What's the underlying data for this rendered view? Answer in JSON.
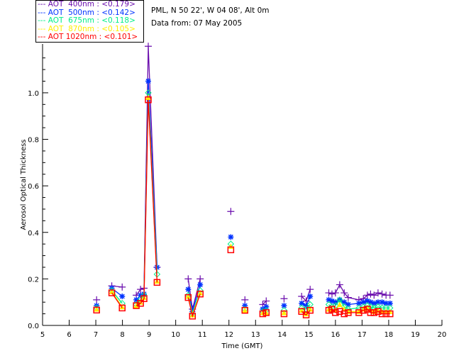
{
  "chart_data": {
    "type": "scatter",
    "title": "",
    "header": [
      "PML, N 50 22', W 04 08', Alt 0m",
      "Data from: 07 May 2005"
    ],
    "xlabel": "Time (GMT)",
    "ylabel": "Aerosol Optical Thickness",
    "xlim": [
      5,
      20
    ],
    "ylim": [
      0,
      1.21
    ],
    "xticks": [
      "5",
      "6",
      "7",
      "8",
      "9",
      "10",
      "11",
      "12",
      "13",
      "14",
      "15",
      "16",
      "17",
      "18",
      "19",
      "20"
    ],
    "yticks": [
      "0.0",
      "0.2",
      "0.4",
      "0.6",
      "0.8",
      "1.0"
    ],
    "legend_placement": "top-left outside",
    "x": [
      7.03,
      7.6,
      7.99,
      8.52,
      8.68,
      8.81,
      8.97,
      9.3,
      10.47,
      10.63,
      10.92,
      12.07,
      12.6,
      13.27,
      13.4,
      14.07,
      14.73,
      14.9,
      15.05,
      15.75,
      15.87,
      16.0,
      16.16,
      16.33,
      16.48,
      16.88,
      17.05,
      17.2,
      17.32,
      17.45,
      17.6,
      17.75,
      17.9,
      18.05
    ],
    "series": [
      {
        "name": "AOT  400nm : <0.179>",
        "color": "#6a0dad",
        "marker": "plus",
        "values": [
          0.11,
          0.17,
          0.165,
          0.13,
          0.155,
          0.16,
          1.2,
          0.25,
          0.2,
          0.07,
          0.2,
          0.49,
          0.11,
          0.09,
          0.105,
          0.115,
          0.125,
          0.105,
          0.155,
          0.14,
          0.135,
          0.14,
          0.175,
          0.14,
          0.12,
          0.11,
          0.115,
          0.13,
          0.135,
          0.13,
          0.14,
          0.135,
          0.13,
          0.13
        ]
      },
      {
        "name": "AOT  500nm : <0.142>",
        "color": "#0033ff",
        "marker": "asterisk",
        "values": [
          0.085,
          0.16,
          0.125,
          0.11,
          0.13,
          0.135,
          1.05,
          0.25,
          0.155,
          0.06,
          0.175,
          0.38,
          0.085,
          0.07,
          0.08,
          0.085,
          0.095,
          0.085,
          0.125,
          0.11,
          0.105,
          0.1,
          0.11,
          0.1,
          0.09,
          0.095,
          0.1,
          0.105,
          0.1,
          0.095,
          0.1,
          0.1,
          0.095,
          0.095
        ]
      },
      {
        "name": "AOT  675nm : <0.118>",
        "color": "#00ee88",
        "marker": "diamond",
        "values": [
          0.075,
          0.15,
          0.095,
          0.09,
          0.11,
          0.13,
          1.0,
          0.22,
          0.13,
          0.05,
          0.15,
          0.35,
          0.07,
          0.06,
          0.065,
          0.065,
          0.075,
          0.07,
          0.09,
          0.09,
          0.08,
          0.085,
          0.11,
          0.08,
          0.07,
          0.075,
          0.08,
          0.085,
          0.08,
          0.075,
          0.08,
          0.075,
          0.075,
          0.075
        ]
      },
      {
        "name": "AOT  870nm : <0.105>",
        "color": "#ffee00",
        "marker": "triangle",
        "values": [
          0.07,
          0.145,
          0.08,
          0.085,
          0.1,
          0.12,
          0.98,
          0.19,
          0.125,
          0.045,
          0.14,
          0.34,
          0.065,
          0.055,
          0.055,
          0.055,
          0.065,
          0.05,
          0.07,
          0.07,
          0.07,
          0.065,
          0.09,
          0.07,
          0.06,
          0.06,
          0.07,
          0.075,
          0.065,
          0.06,
          0.065,
          0.06,
          0.06,
          0.06
        ]
      },
      {
        "name": "AOT 1020nm : <0.101>",
        "color": "#ff0000",
        "marker": "square",
        "values": [
          0.066,
          0.14,
          0.075,
          0.085,
          0.095,
          0.115,
          0.97,
          0.185,
          0.12,
          0.04,
          0.135,
          0.325,
          0.065,
          0.05,
          0.055,
          0.05,
          0.06,
          0.045,
          0.065,
          0.065,
          0.07,
          0.055,
          0.06,
          0.05,
          0.055,
          0.055,
          0.065,
          0.07,
          0.055,
          0.055,
          0.06,
          0.05,
          0.05,
          0.05
        ]
      }
    ]
  }
}
